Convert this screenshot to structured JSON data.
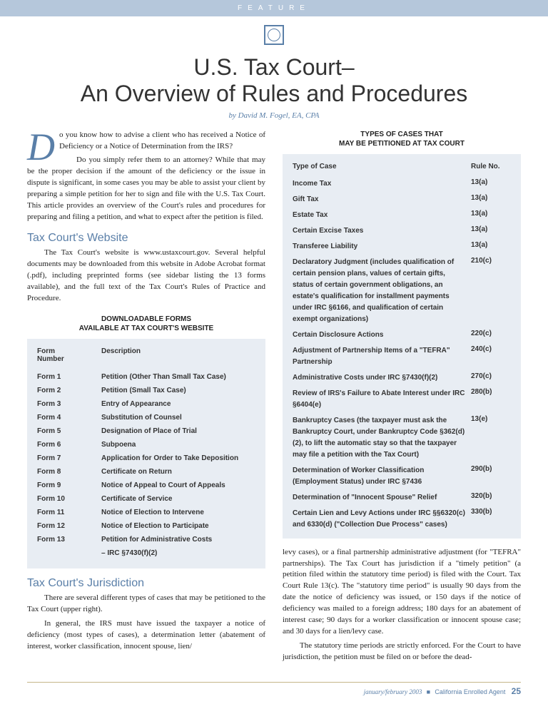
{
  "feature_label": "FEATURE",
  "title_line1": "U.S. Tax Court–",
  "title_line2": "An Overview of Rules and Procedures",
  "byline": "by David M. Fogel, EA, CPA",
  "colors": {
    "header_bar": "#b5c7db",
    "accent": "#5a7fa8",
    "table_bg": "#e8edf3",
    "footer_rule": "#c5b68a",
    "body_text": "#222222"
  },
  "fonts": {
    "title_family": "Arial",
    "title_weight": 300,
    "title_size_pt": 32,
    "section_size_pt": 16,
    "body_size_pt": 11,
    "table_size_pt": 10
  },
  "left": {
    "intro_para1_first": "o you know how to advise a client who has received a Notice of Deficiency or a Notice of Determination from the IRS?",
    "intro_para2": "Do you simply refer them to an attorney? While that may be the proper decision if the amount of the deficiency or the issue in dispute is significant, in some cases you may be able to assist your client by preparing a simple petition for her to sign and file with the U.S. Tax Court. This article provides an overview of the Court's rules and procedures for preparing and filing a petition, and what to expect after the petition is filed.",
    "section_website": "Tax Court's Website",
    "website_para": "The Tax Court's website is www.ustaxcourt.gov. Several helpful documents may be downloaded from this website in Adobe Acrobat format (.pdf), including preprinted forms (see sidebar listing the 13 forms available), and the full text of the Tax Court's Rules of Practice and Procedure.",
    "forms_table_title": "DOWNLOADABLE FORMS\nAVAILABLE AT TAX COURT'S WEBSITE",
    "forms_header_num": "Form\nNumber",
    "forms_header_desc": "Description",
    "forms": [
      {
        "num": "Form 1",
        "desc": "Petition (Other Than Small Tax Case)"
      },
      {
        "num": "Form 2",
        "desc": "Petition (Small Tax Case)"
      },
      {
        "num": "Form 3",
        "desc": "Entry of Appearance"
      },
      {
        "num": "Form 4",
        "desc": "Substitution of Counsel"
      },
      {
        "num": "Form 5",
        "desc": "Designation of Place of Trial"
      },
      {
        "num": "Form 6",
        "desc": "Subpoena"
      },
      {
        "num": "Form 7",
        "desc": "Application for Order to Take Deposition"
      },
      {
        "num": "Form 8",
        "desc": "Certificate on Return"
      },
      {
        "num": "Form 9",
        "desc": "Notice of Appeal to Court of Appeals"
      },
      {
        "num": "Form 10",
        "desc": "Certificate of Service"
      },
      {
        "num": "Form 11",
        "desc": "Notice of Election to Intervene"
      },
      {
        "num": "Form 12",
        "desc": "Notice of Election to Participate"
      },
      {
        "num": "Form 13",
        "desc": "Petition for Administrative Costs"
      },
      {
        "num": "",
        "desc": "– IRC §7430(f)(2)"
      }
    ],
    "section_jurisdiction": "Tax Court's Jurisdiction",
    "juris_para1": "There are several different types of cases that may be petitioned to the Tax Court (upper right).",
    "juris_para2": "In general, the IRS must have issued the taxpayer a notice of deficiency (most types of cases), a determination letter (abatement of interest, worker classification, innocent spouse, lien/"
  },
  "right": {
    "cases_table_title": "TYPES OF CASES THAT\nMAY BE PETITIONED AT TAX COURT",
    "cases_header_type": "Type of Case",
    "cases_header_rule": "Rule No.",
    "cases": [
      {
        "type": "Income Tax",
        "rule": "13(a)"
      },
      {
        "type": "Gift Tax",
        "rule": "13(a)"
      },
      {
        "type": "Estate Tax",
        "rule": "13(a)"
      },
      {
        "type": "Certain Excise Taxes",
        "rule": "13(a)"
      },
      {
        "type": "Transferee Liability",
        "rule": "13(a)"
      },
      {
        "type": "Declaratory Judgment (includes qualification of certain pension plans, values of certain gifts, status of certain government obligations, an estate's qualification for installment payments under IRC §6166, and qualification of certain exempt organizations)",
        "rule": "210(c)"
      },
      {
        "type": "Certain Disclosure Actions",
        "rule": "220(c)"
      },
      {
        "type": "Adjustment of Partnership Items of a \"TEFRA\" Partnership",
        "rule": "240(c)"
      },
      {
        "type": "Administrative Costs under IRC §7430(f)(2)",
        "rule": "270(c)"
      },
      {
        "type": "Review of IRS's Failure to Abate Interest under IRC §6404(e)",
        "rule": "280(b)"
      },
      {
        "type": "Bankruptcy Cases (the taxpayer must ask the Bankruptcy Court, under Bankruptcy Code §362(d)(2), to lift the automatic stay so that the taxpayer may file a petition with the Tax Court)",
        "rule": "13(e)"
      },
      {
        "type": "Determination of Worker Classification (Employment Status) under IRC §7436",
        "rule": "290(b)"
      },
      {
        "type": "Determination of \"Innocent Spouse\" Relief",
        "rule": "320(b)"
      },
      {
        "type": "Certain Lien and Levy Actions under IRC §§6320(c) and 6330(d) (\"Collection Due Process\" cases)",
        "rule": "330(b)"
      }
    ],
    "continuation_para1": "levy cases), or a final partnership administrative adjustment (for \"TEFRA\" partnerships). The Tax Court has jurisdiction if a \"timely petition\" (a petition filed within the statutory time period) is filed with the Court. Tax Court Rule 13(c). The \"statutory time period\" is usually 90 days from the date the notice of deficiency was issued, or 150 days if the notice of deficiency was mailed to a foreign address; 180 days for an abatement of interest case; 90 days for a worker classification or innocent spouse case; and 30 days for a lien/levy case.",
    "continuation_para2": "The statutory time periods are strictly enforced. For the Court to have jurisdiction, the petition must be filed on or before the dead-"
  },
  "footer": {
    "issue": "january/february 2003",
    "publication": "California Enrolled Agent",
    "page": "25"
  }
}
